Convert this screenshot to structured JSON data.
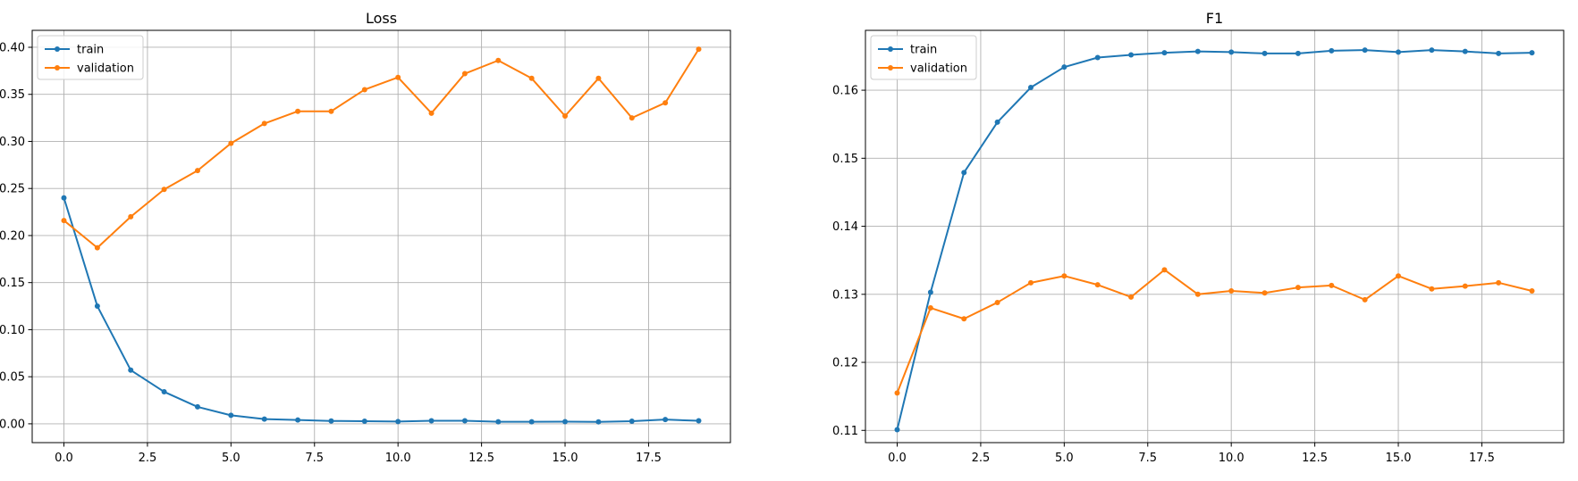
{
  "chart_data": [
    {
      "type": "line",
      "title": "Loss",
      "xlabel": "",
      "ylabel": "",
      "xlim": [
        -0.95,
        19.95
      ],
      "ylim": [
        -0.02,
        0.418
      ],
      "xticks": [
        0.0,
        2.5,
        5.0,
        7.5,
        10.0,
        12.5,
        15.0,
        17.5
      ],
      "xtick_labels": [
        "0.0",
        "2.5",
        "5.0",
        "7.5",
        "10.0",
        "12.5",
        "15.0",
        "17.5"
      ],
      "yticks": [
        0.0,
        0.05,
        0.1,
        0.15,
        0.2,
        0.25,
        0.3,
        0.35,
        0.4
      ],
      "ytick_labels": [
        "0.00",
        "0.05",
        "0.10",
        "0.15",
        "0.20",
        "0.25",
        "0.30",
        "0.35",
        "0.40"
      ],
      "grid": true,
      "legend_position": "top-left",
      "x": [
        0,
        1,
        2,
        3,
        4,
        5,
        6,
        7,
        8,
        9,
        10,
        11,
        12,
        13,
        14,
        15,
        16,
        17,
        18,
        19
      ],
      "series": [
        {
          "name": "train",
          "color": "#1f77b4",
          "values": [
            0.24,
            0.125,
            0.057,
            0.034,
            0.018,
            0.009,
            0.005,
            0.004,
            0.003,
            0.0028,
            0.0024,
            0.0032,
            0.0032,
            0.0022,
            0.0022,
            0.0023,
            0.0021,
            0.0027,
            0.0045,
            0.0032
          ]
        },
        {
          "name": "validation",
          "color": "#ff7f0e",
          "values": [
            0.216,
            0.187,
            0.22,
            0.249,
            0.269,
            0.298,
            0.319,
            0.332,
            0.332,
            0.355,
            0.368,
            0.33,
            0.372,
            0.386,
            0.367,
            0.327,
            0.367,
            0.325,
            0.341,
            0.398
          ]
        }
      ]
    },
    {
      "type": "line",
      "title": "F1",
      "xlabel": "",
      "ylabel": "",
      "xlim": [
        -0.95,
        19.95
      ],
      "ylim": [
        0.1082,
        0.1688
      ],
      "xticks": [
        0.0,
        2.5,
        5.0,
        7.5,
        10.0,
        12.5,
        15.0,
        17.5
      ],
      "xtick_labels": [
        "0.0",
        "2.5",
        "5.0",
        "7.5",
        "10.0",
        "12.5",
        "15.0",
        "17.5"
      ],
      "yticks": [
        0.11,
        0.12,
        0.13,
        0.14,
        0.15,
        0.16
      ],
      "ytick_labels": [
        "0.11",
        "0.12",
        "0.13",
        "0.14",
        "0.15",
        "0.16"
      ],
      "grid": true,
      "legend_position": "top-left",
      "x": [
        0,
        1,
        2,
        3,
        4,
        5,
        6,
        7,
        8,
        9,
        10,
        11,
        12,
        13,
        14,
        15,
        16,
        17,
        18,
        19
      ],
      "series": [
        {
          "name": "train",
          "color": "#1f77b4",
          "values": [
            0.1101,
            0.1303,
            0.1479,
            0.1553,
            0.1604,
            0.1634,
            0.1648,
            0.1652,
            0.1655,
            0.1657,
            0.1656,
            0.1654,
            0.1654,
            0.1658,
            0.1659,
            0.1656,
            0.1659,
            0.1657,
            0.1654,
            0.1655
          ]
        },
        {
          "name": "validation",
          "color": "#ff7f0e",
          "values": [
            0.1155,
            0.128,
            0.1264,
            0.1288,
            0.1317,
            0.1327,
            0.1314,
            0.1296,
            0.1336,
            0.13,
            0.1305,
            0.1302,
            0.131,
            0.1313,
            0.1292,
            0.1327,
            0.1308,
            0.1312,
            0.1317,
            0.1305
          ]
        }
      ]
    }
  ]
}
